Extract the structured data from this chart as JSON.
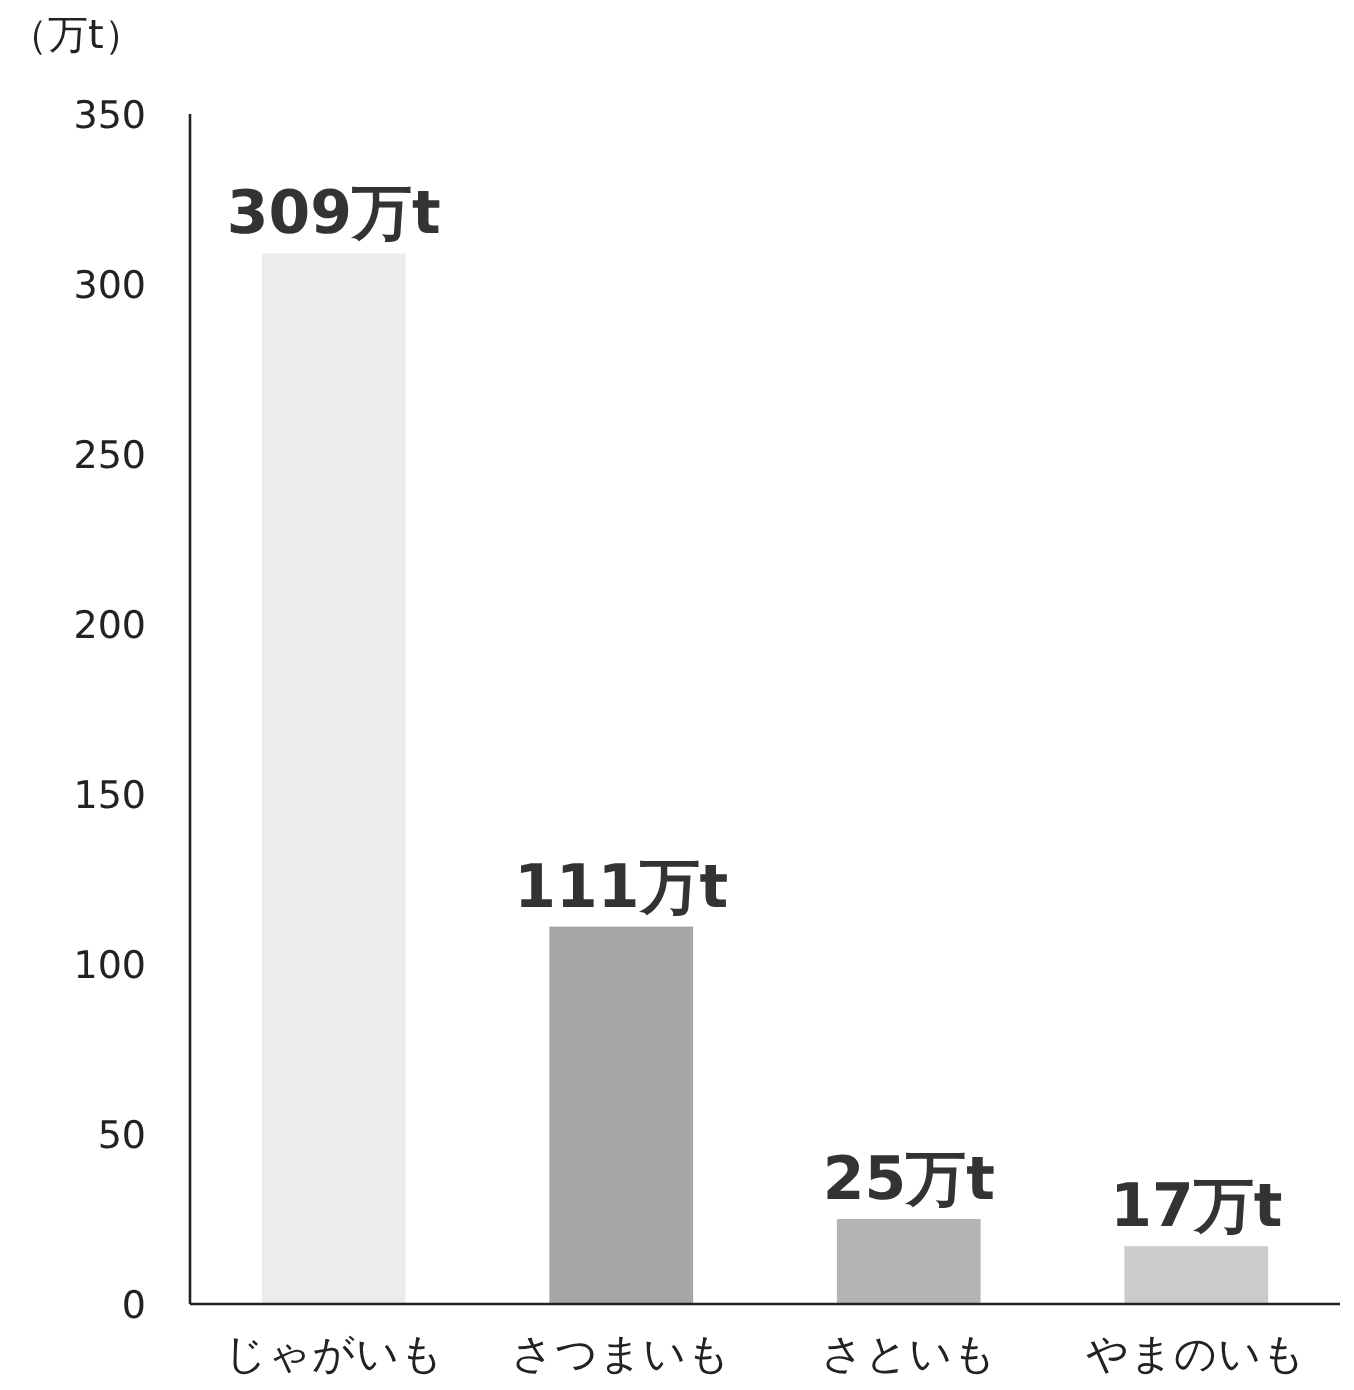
{
  "chart_data": {
    "type": "bar",
    "ylabel": "（万t）",
    "categories": [
      "じゃがいも",
      "さつまいも",
      "さといも",
      "やまのいも"
    ],
    "values": [
      309,
      111,
      25,
      17
    ],
    "colors": [
      "#ececec",
      "#a6a6a6",
      "#b4b4b4",
      "#cbcbcb"
    ],
    "value_labels": [
      "309万t",
      "111万t",
      "25万t",
      "17万t"
    ],
    "ylim": [
      0,
      350
    ],
    "yticks": [
      0,
      50,
      100,
      150,
      200,
      250,
      300,
      350
    ]
  }
}
